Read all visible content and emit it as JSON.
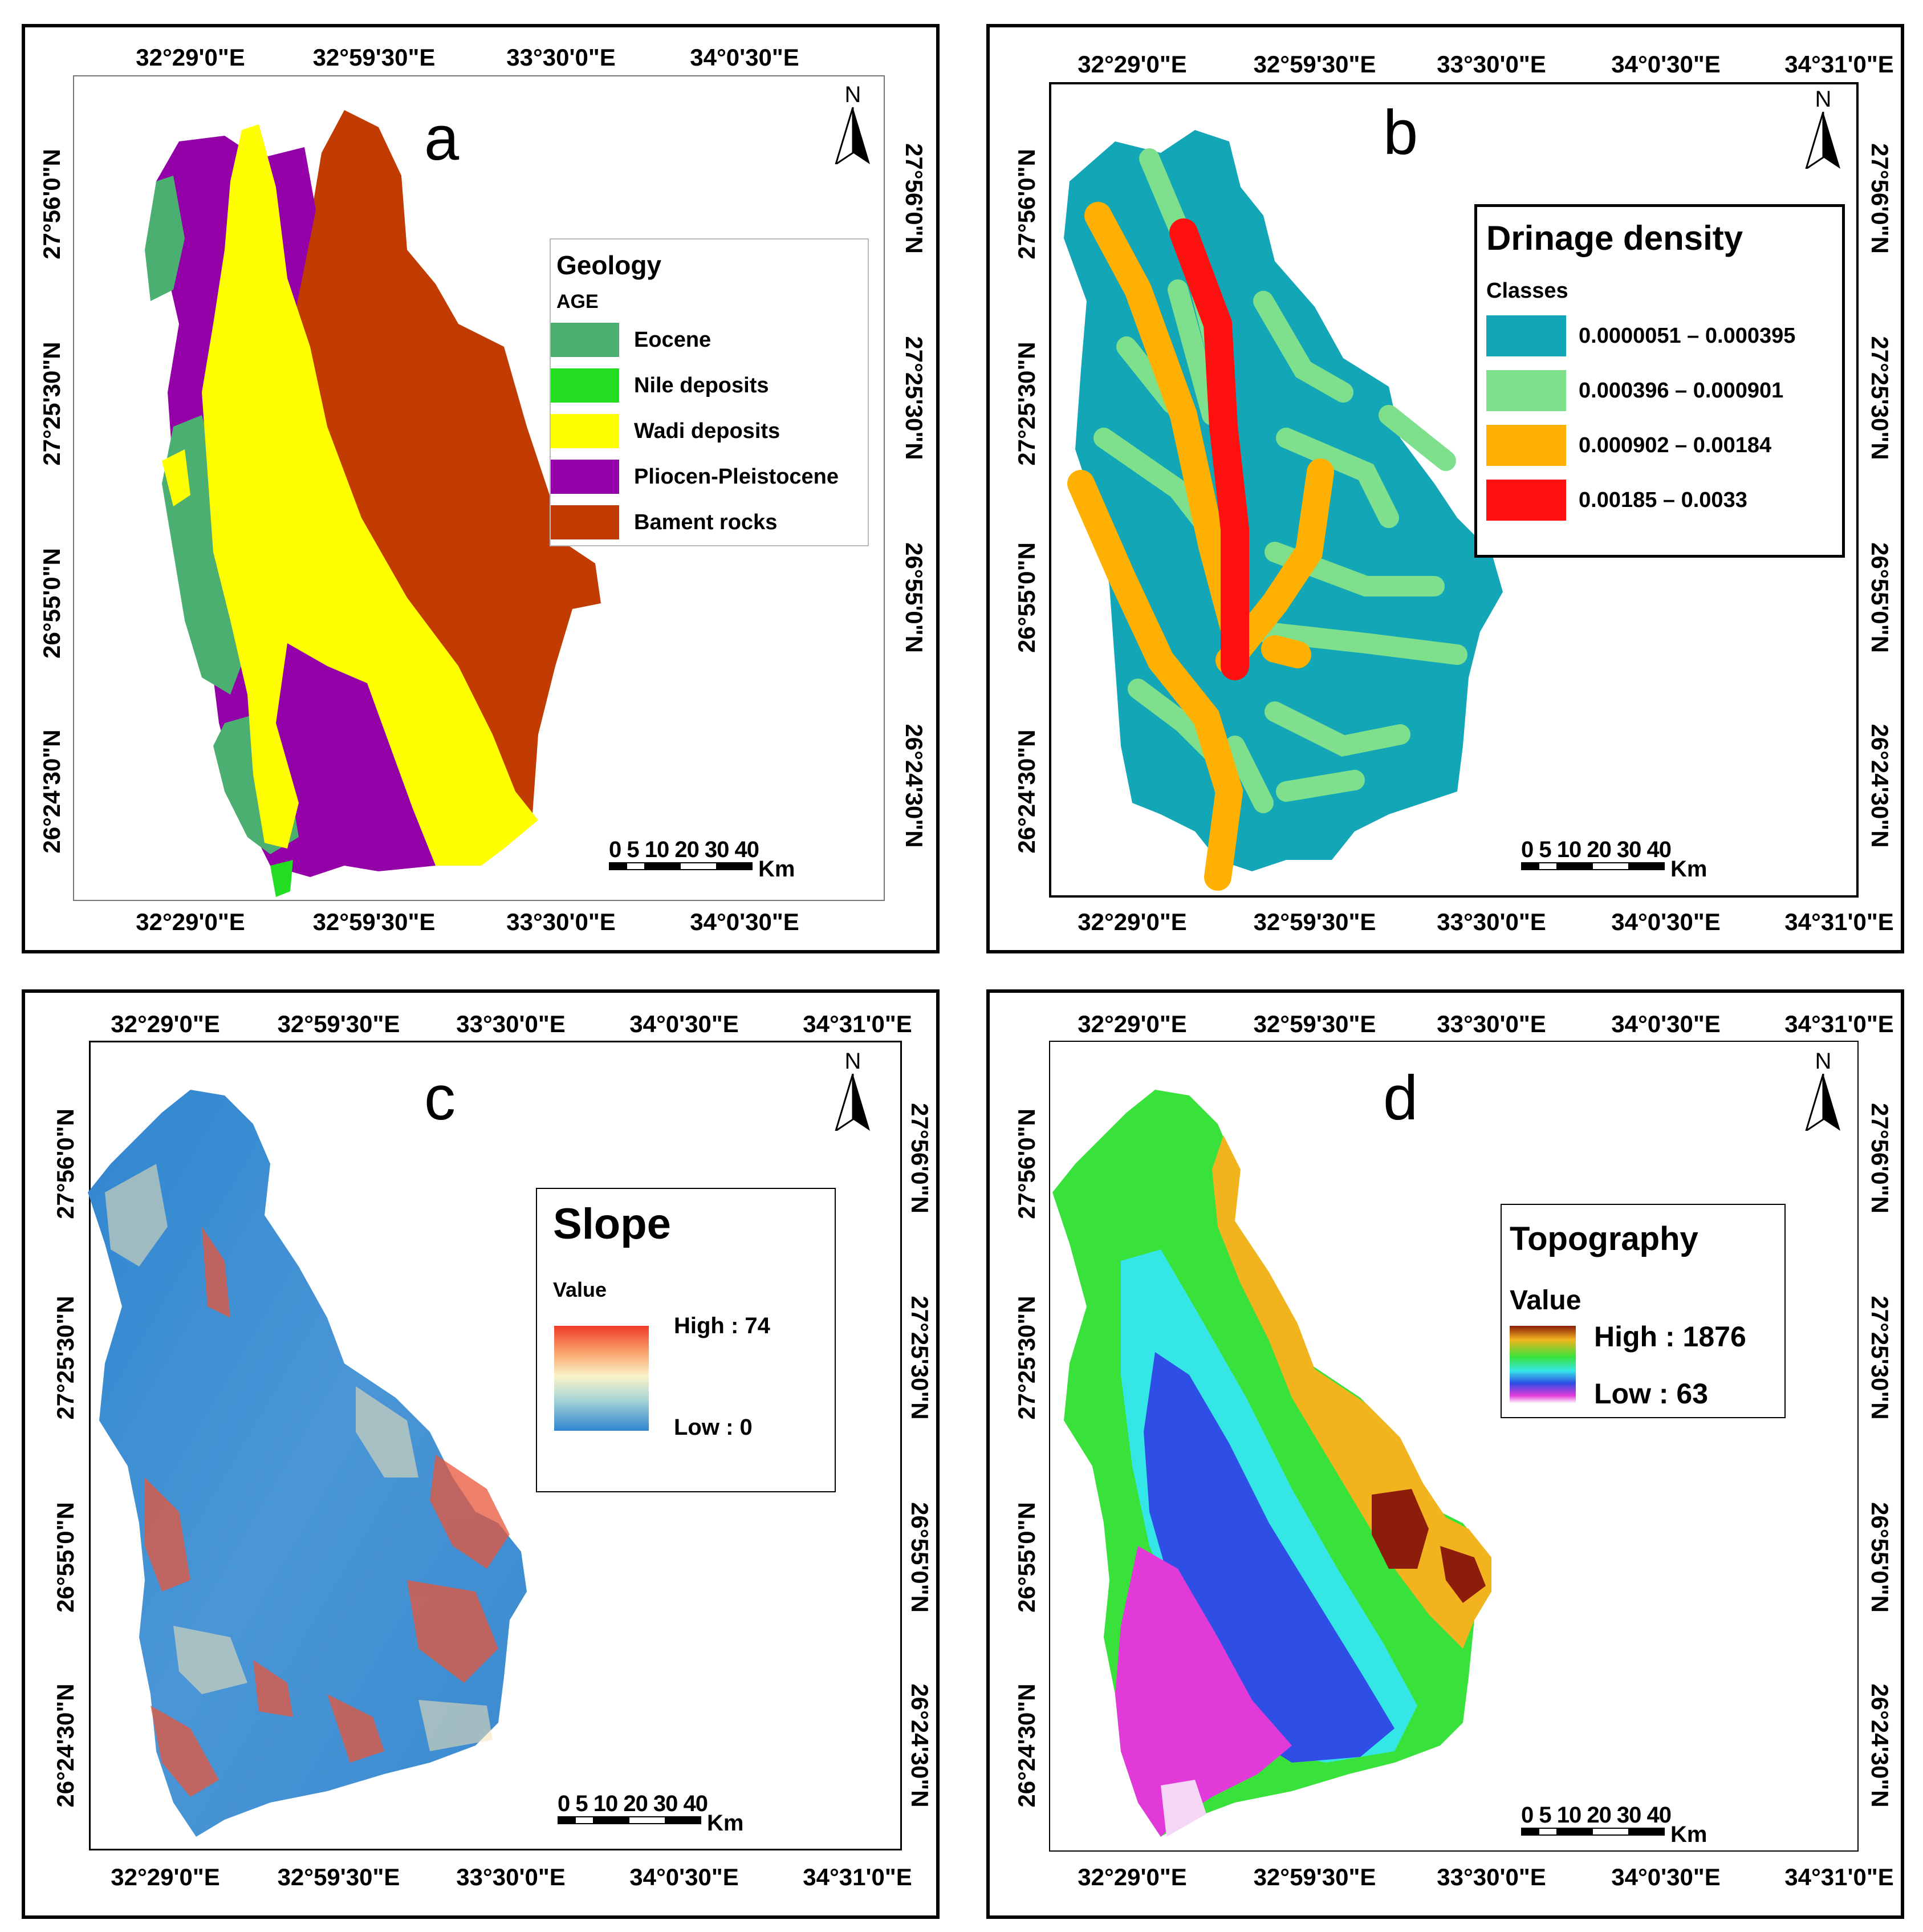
{
  "figure": {
    "panels": [
      {
        "id": "a",
        "letter": "a",
        "lon_top": [
          "32°29'0\"E",
          "32°59'30\"E",
          "33°30'0\"E",
          "34°0'30\"E"
        ],
        "lon_bottom": [
          "32°29'0\"E",
          "32°59'30\"E",
          "33°30'0\"E",
          "34°0'30\"E"
        ],
        "lat_left": [
          "27°56'0\"N",
          "27°25'30\"N",
          "26°55'0\"N",
          "26°24'30\"N"
        ],
        "lat_right": [
          "27°56'0\"N",
          "27°25'30\"N",
          "26°55'0\"N",
          "26°24'30\"N"
        ],
        "legend": {
          "title": "Geology",
          "subtitle": "AGE",
          "items": [
            {
              "label": "Eocene",
              "color": "#4caf72"
            },
            {
              "label": "Nile deposits",
              "color": "#22dd22"
            },
            {
              "label": "Wadi deposits",
              "color": "#ffff00"
            },
            {
              "label": "Pliocen-Pleistocene",
              "color": "#9400a8"
            },
            {
              "label": "Bament rocks",
              "color": "#c23b00"
            }
          ]
        }
      },
      {
        "id": "b",
        "letter": "b",
        "lon_top": [
          "32°29'0\"E",
          "32°59'30\"E",
          "33°30'0\"E",
          "34°0'30\"E",
          "34°31'0\"E"
        ],
        "lon_bottom": [
          "32°29'0\"E",
          "32°59'30\"E",
          "33°30'0\"E",
          "34°0'30\"E",
          "34°31'0\"E"
        ],
        "lat_left": [
          "27°56'0\"N",
          "27°25'30\"N",
          "26°55'0\"N",
          "26°24'30\"N"
        ],
        "lat_right": [
          "27°56'0\"N",
          "27°25'30\"N",
          "26°55'0\"N",
          "26°24'30\"N"
        ],
        "legend": {
          "title": "Drinage density",
          "subtitle": "Classes",
          "items": [
            {
              "label": "0.0000051 – 0.000395",
              "color": "#13a6b7"
            },
            {
              "label": "0.000396 – 0.000901",
              "color": "#7ee08c"
            },
            {
              "label": "0.000902 – 0.00184",
              "color": "#ffb000"
            },
            {
              "label": "0.00185 – 0.0033",
              "color": "#ff1010"
            }
          ]
        }
      },
      {
        "id": "c",
        "letter": "c",
        "lon_top": [
          "32°29'0\"E",
          "32°59'30\"E",
          "33°30'0\"E",
          "34°0'30\"E",
          "34°31'0\"E"
        ],
        "lon_bottom": [
          "32°29'0\"E",
          "32°59'30\"E",
          "33°30'0\"E",
          "34°0'30\"E",
          "34°31'0\"E"
        ],
        "lat_left": [
          "27°56'0\"N",
          "27°25'30\"N",
          "26°55'0\"N",
          "26°24'30\"N"
        ],
        "lat_right": [
          "27°56'0\"N",
          "27°25'30\"N",
          "26°55'0\"N",
          "26°24'30\"N"
        ],
        "legend": {
          "title": "Slope",
          "subtitle": "Value",
          "high": "High : 74",
          "low": "Low : 0"
        }
      },
      {
        "id": "d",
        "letter": "d",
        "lon_top": [
          "32°29'0\"E",
          "32°59'30\"E",
          "33°30'0\"E",
          "34°0'30\"E",
          "34°31'0\"E"
        ],
        "lon_bottom": [
          "32°29'0\"E",
          "32°59'30\"E",
          "33°30'0\"E",
          "34°0'30\"E",
          "34°31'0\"E"
        ],
        "lat_left": [
          "27°56'0\"N",
          "27°25'30\"N",
          "26°55'0\"N",
          "26°24'30\"N"
        ],
        "lat_right": [
          "27°56'0\"N",
          "27°25'30\"N",
          "26°55'0\"N",
          "26°24'30\"N"
        ],
        "legend": {
          "title": "Topography",
          "subtitle": "Value",
          "high": "High : 1876",
          "low": "Low : 63"
        }
      }
    ],
    "north_label": "N",
    "scale": {
      "ticks": "0 5 10 20 30 40",
      "unit": "Km"
    }
  }
}
